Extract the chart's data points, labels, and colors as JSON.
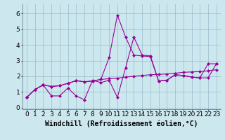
{
  "title": "",
  "xlabel": "Windchill (Refroidissement éolien,°C)",
  "ylabel": "",
  "background_color": "#cce8ee",
  "line_color": "#990099",
  "grid_color": "#99bbcc",
  "xlim": [
    -0.5,
    23.5
  ],
  "ylim": [
    -0.1,
    6.6
  ],
  "xticks": [
    0,
    1,
    2,
    3,
    4,
    5,
    6,
    7,
    8,
    9,
    10,
    11,
    12,
    13,
    14,
    15,
    16,
    17,
    18,
    19,
    20,
    21,
    22,
    23
  ],
  "yticks": [
    0,
    1,
    2,
    3,
    4,
    5,
    6
  ],
  "series1_x": [
    0,
    1,
    2,
    3,
    4,
    5,
    6,
    7,
    8,
    9,
    10,
    11,
    12,
    13,
    14,
    15,
    16,
    17,
    18,
    19,
    20,
    21,
    22,
    23
  ],
  "series1_y": [
    0.65,
    1.15,
    1.45,
    0.75,
    0.75,
    1.25,
    0.75,
    0.5,
    1.75,
    1.6,
    1.75,
    0.65,
    2.55,
    4.5,
    3.35,
    3.3,
    1.7,
    1.75,
    2.1,
    2.05,
    1.95,
    1.9,
    1.9,
    2.8
  ],
  "series2_x": [
    0,
    1,
    2,
    3,
    4,
    5,
    6,
    7,
    8,
    9,
    10,
    11,
    12,
    13,
    14,
    15,
    16,
    17,
    18,
    19,
    20,
    21,
    22,
    23
  ],
  "series2_y": [
    0.65,
    1.15,
    1.45,
    1.35,
    1.4,
    1.55,
    1.72,
    1.65,
    1.7,
    1.8,
    1.85,
    1.88,
    1.95,
    2.0,
    2.05,
    2.1,
    2.12,
    2.15,
    2.2,
    2.25,
    2.28,
    2.3,
    2.35,
    2.42
  ],
  "series3_x": [
    0,
    1,
    2,
    3,
    4,
    5,
    6,
    7,
    8,
    9,
    10,
    11,
    12,
    13,
    14,
    15,
    16,
    17,
    18,
    19,
    20,
    21,
    22,
    23
  ],
  "series3_y": [
    0.65,
    1.15,
    1.45,
    1.35,
    1.4,
    1.55,
    1.72,
    1.65,
    1.7,
    1.8,
    3.2,
    5.9,
    4.5,
    3.35,
    3.3,
    3.25,
    1.7,
    1.75,
    2.1,
    2.05,
    1.95,
    1.9,
    2.8,
    2.8
  ],
  "xlabel_fontsize": 7,
  "tick_fontsize": 6.5,
  "lw": 0.8,
  "ms": 2.5
}
